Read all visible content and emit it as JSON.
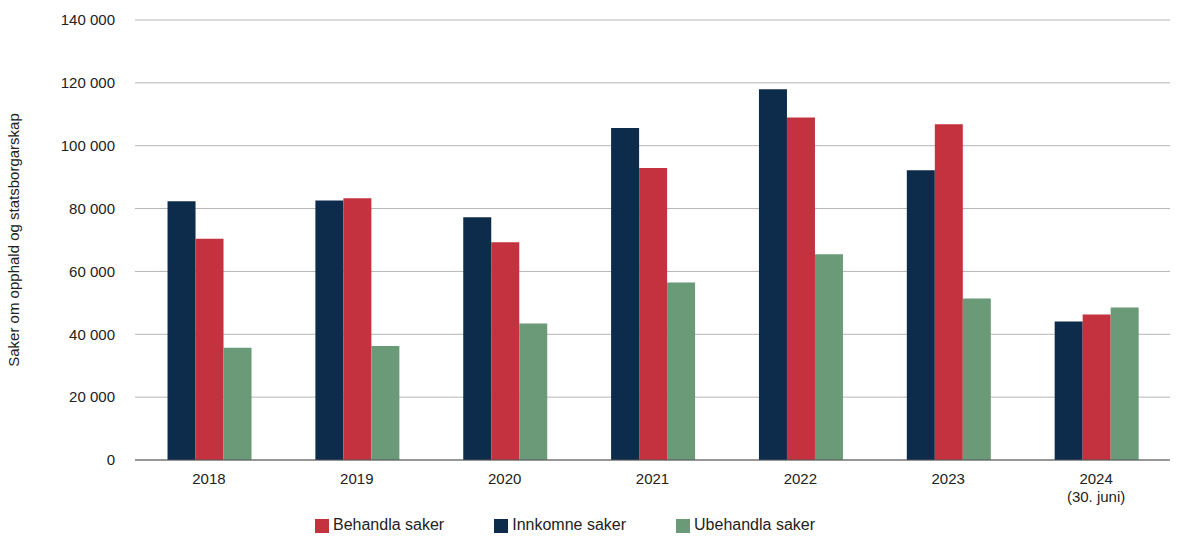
{
  "chart_data": {
    "type": "bar",
    "categories": [
      "2018",
      "2019",
      "2020",
      "2021",
      "2022",
      "2023",
      "2024\n(30. juni)"
    ],
    "y_label": "Saker om opphald og statsborgarskap",
    "series": [
      {
        "name": "Innkomne saker",
        "color": "#0d2b4a",
        "values": [
          82300,
          82600,
          77200,
          105600,
          118000,
          92200,
          44100
        ]
      },
      {
        "name": "Behandla saker",
        "color": "#c4323f",
        "values": [
          70400,
          83300,
          69300,
          92900,
          109000,
          106800,
          46300
        ]
      },
      {
        "name": "Ubehandla saker",
        "color": "#6a9a78",
        "values": [
          35700,
          36300,
          43400,
          56500,
          65500,
          51400,
          48500
        ]
      }
    ],
    "ylim": [
      0,
      140000
    ],
    "yticks": [
      0,
      {
        "value": 20000,
        "label": "20 000"
      },
      {
        "value": 40000,
        "label": "40 000"
      },
      {
        "value": 60000,
        "label": "60 000"
      },
      {
        "value": 80000,
        "label": "80 000"
      },
      {
        "value": 100000,
        "label": "100 000"
      },
      {
        "value": 120000,
        "label": "120 000"
      },
      {
        "value": 140000,
        "label": "140 000"
      }
    ],
    "grid": true,
    "legend": "bottom"
  }
}
